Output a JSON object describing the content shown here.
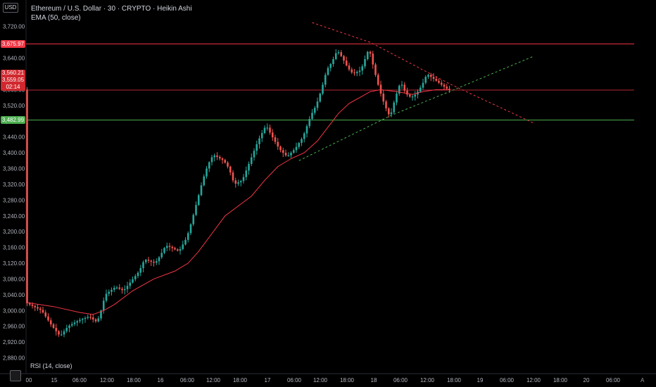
{
  "header": {
    "currency": "USD",
    "symbol_line": "Ethereum / U.S. Dollar · 30 · CRYPTO · Heikin Ashi",
    "indicator_line": "EMA (50, close)"
  },
  "rsi_label": "RSI (14, close)",
  "auto_label": "A",
  "colors": {
    "background": "#000000",
    "bull": "#26a69a",
    "bear": "#ef5350",
    "ema": "#f23645",
    "resistance": "#f23645",
    "support": "#4caf50",
    "trend_down": "#f23645",
    "trend_up": "#4caf50",
    "axis_text": "#b2b5be"
  },
  "badges": {
    "resistance": "3,675.97",
    "current_high": "3,560.21",
    "current_close": "3,559.05",
    "countdown": "02:14",
    "support": "3,482.99"
  },
  "chart_data": {
    "type": "candlestick",
    "style": "Heikin Ashi",
    "ylim": [
      2860,
      3730
    ],
    "y_ticks": [
      "3,720.00",
      "3,680.00",
      "3,640.00",
      "3,600.00",
      "3,560.00",
      "3,520.00",
      "3,480.00",
      "3,440.00",
      "3,400.00",
      "3,360.00",
      "3,320.00",
      "3,280.00",
      "3,240.00",
      "3,200.00",
      "3,160.00",
      "3,120.00",
      "3,080.00",
      "3,040.00",
      "3,000.00",
      "2,960.00",
      "2,920.00",
      "2,880.00"
    ],
    "x_ticks": [
      "00",
      "15",
      "06:00",
      "12:00",
      "18:00",
      "16",
      "06:00",
      "12:00",
      "18:00",
      "17",
      "06:00",
      "12:00",
      "18:00",
      "18",
      "06:00",
      "12:00",
      "18:00",
      "19",
      "06:00",
      "12:00",
      "18:00",
      "20",
      "06:00"
    ],
    "horizontal_lines": [
      {
        "name": "resistance",
        "value": 3675.97
      },
      {
        "name": "current",
        "value": 3559.05
      },
      {
        "name": "support",
        "value": 3482.99
      }
    ],
    "price_path": [
      [
        0,
        3020
      ],
      [
        6,
        3000
      ],
      [
        10,
        2960
      ],
      [
        13,
        2935
      ],
      [
        16,
        2960
      ],
      [
        20,
        2975
      ],
      [
        24,
        2985
      ],
      [
        27,
        2970
      ],
      [
        29,
        3010
      ],
      [
        30,
        3040
      ],
      [
        34,
        3060
      ],
      [
        37,
        3050
      ],
      [
        40,
        3075
      ],
      [
        43,
        3100
      ],
      [
        45,
        3130
      ],
      [
        49,
        3120
      ],
      [
        51,
        3140
      ],
      [
        53,
        3165
      ],
      [
        55,
        3160
      ],
      [
        58,
        3150
      ],
      [
        61,
        3185
      ],
      [
        63,
        3230
      ],
      [
        65,
        3280
      ],
      [
        67,
        3330
      ],
      [
        69,
        3370
      ],
      [
        71,
        3395
      ],
      [
        75,
        3380
      ],
      [
        77,
        3360
      ],
      [
        79,
        3320
      ],
      [
        82,
        3330
      ],
      [
        85,
        3380
      ],
      [
        88,
        3430
      ],
      [
        91,
        3470
      ],
      [
        93,
        3445
      ],
      [
        96,
        3410
      ],
      [
        99,
        3390
      ],
      [
        102,
        3410
      ],
      [
        105,
        3440
      ],
      [
        108,
        3495
      ],
      [
        110,
        3520
      ],
      [
        112,
        3560
      ],
      [
        114,
        3610
      ],
      [
        116,
        3630
      ],
      [
        118,
        3660
      ],
      [
        120,
        3640
      ],
      [
        122,
        3615
      ],
      [
        124,
        3600
      ],
      [
        127,
        3610
      ],
      [
        130,
        3665
      ],
      [
        132,
        3610
      ],
      [
        134,
        3560
      ],
      [
        136,
        3520
      ],
      [
        138,
        3490
      ],
      [
        140,
        3540
      ],
      [
        142,
        3580
      ],
      [
        144,
        3550
      ],
      [
        146,
        3540
      ],
      [
        148,
        3550
      ],
      [
        150,
        3570
      ],
      [
        152,
        3600
      ],
      [
        154,
        3590
      ],
      [
        156,
        3580
      ],
      [
        158,
        3570
      ],
      [
        160,
        3560
      ]
    ],
    "ema_path": [
      [
        0,
        3020
      ],
      [
        10,
        3010
      ],
      [
        20,
        2995
      ],
      [
        25,
        2990
      ],
      [
        29,
        3000
      ],
      [
        33,
        3015
      ],
      [
        40,
        3050
      ],
      [
        48,
        3080
      ],
      [
        56,
        3100
      ],
      [
        61,
        3120
      ],
      [
        65,
        3150
      ],
      [
        70,
        3195
      ],
      [
        75,
        3240
      ],
      [
        80,
        3265
      ],
      [
        85,
        3290
      ],
      [
        90,
        3330
      ],
      [
        95,
        3365
      ],
      [
        100,
        3385
      ],
      [
        105,
        3400
      ],
      [
        110,
        3430
      ],
      [
        114,
        3465
      ],
      [
        118,
        3500
      ],
      [
        122,
        3525
      ],
      [
        126,
        3540
      ],
      [
        130,
        3555
      ],
      [
        134,
        3560
      ],
      [
        140,
        3555
      ],
      [
        146,
        3548
      ],
      [
        150,
        3555
      ],
      [
        155,
        3560
      ],
      [
        160,
        3560
      ]
    ],
    "trendlines": [
      {
        "name": "descending-resistance",
        "points": [
          [
            108,
            3730
          ],
          [
            130,
            3680
          ],
          [
            160,
            3575
          ],
          [
            192,
            3475
          ]
        ]
      },
      {
        "name": "ascending-support",
        "points": [
          [
            103,
            3380
          ],
          [
            138,
            3495
          ],
          [
            160,
            3555
          ],
          [
            192,
            3645
          ]
        ]
      }
    ]
  }
}
